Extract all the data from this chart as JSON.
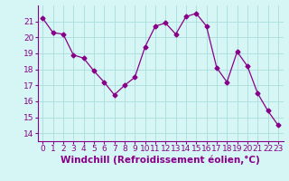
{
  "x": [
    0,
    1,
    2,
    3,
    4,
    5,
    6,
    7,
    8,
    9,
    10,
    11,
    12,
    13,
    14,
    15,
    16,
    17,
    18,
    19,
    20,
    21,
    22,
    23
  ],
  "y": [
    21.2,
    20.3,
    20.2,
    18.9,
    18.7,
    17.9,
    17.2,
    16.4,
    17.0,
    17.5,
    19.4,
    20.7,
    20.9,
    20.2,
    21.3,
    21.5,
    20.7,
    18.1,
    17.2,
    19.1,
    18.2,
    16.5,
    15.4,
    14.5
  ],
  "line_color": "#880088",
  "marker": "D",
  "marker_size": 2.5,
  "bg_color": "#d6f5f5",
  "grid_color": "#aadddd",
  "xlabel": "Windchill (Refroidissement éolien,°C)",
  "xlabel_color": "#880088",
  "ylim": [
    13.5,
    22
  ],
  "xlim": [
    -0.5,
    23.5
  ],
  "yticks": [
    14,
    15,
    16,
    17,
    18,
    19,
    20,
    21
  ],
  "xticks": [
    0,
    1,
    2,
    3,
    4,
    5,
    6,
    7,
    8,
    9,
    10,
    11,
    12,
    13,
    14,
    15,
    16,
    17,
    18,
    19,
    20,
    21,
    22,
    23
  ],
  "tick_label_size": 6.5,
  "xlabel_fontsize": 7.5,
  "tick_color": "#880088",
  "spine_color": "#880088"
}
